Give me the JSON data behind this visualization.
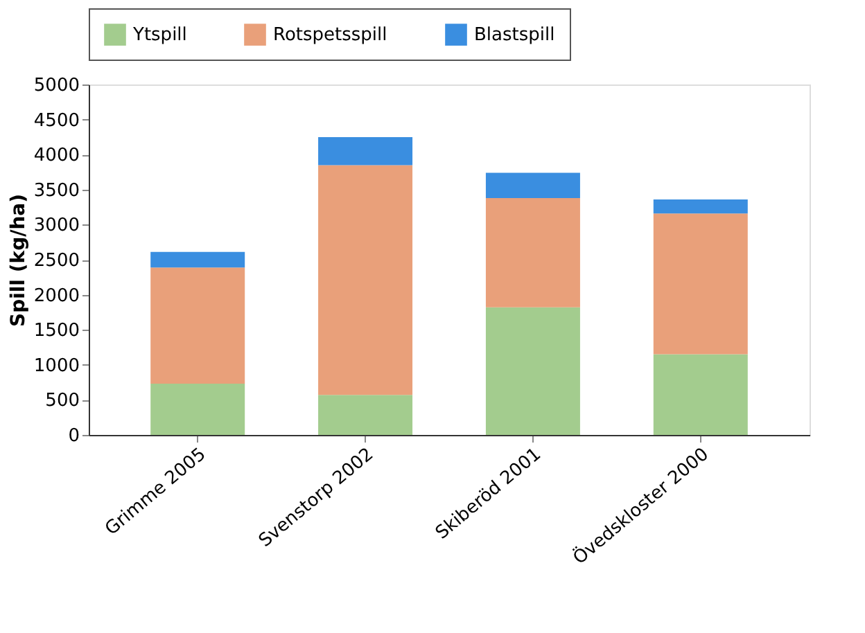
{
  "chart_data": {
    "type": "bar",
    "stacked": true,
    "ylabel": "Spill (kg/ha)",
    "categories": [
      "Grimme 2005",
      "Svenstorp 2002",
      "Skiberöd 2001",
      "Övedskloster 2000"
    ],
    "series": [
      {
        "name": "Ytspill",
        "color": "#a3cc8e",
        "values": [
          730,
          570,
          1820,
          1150
        ]
      },
      {
        "name": "Rotspetsspill",
        "color": "#e9a07a",
        "values": [
          1660,
          3280,
          1560,
          2010
        ]
      },
      {
        "name": "Blastspill",
        "color": "#3a8ee0",
        "values": [
          220,
          400,
          360,
          200
        ]
      }
    ],
    "ylim": [
      0,
      5000
    ],
    "yticks": [
      0,
      500,
      1000,
      1500,
      2000,
      2500,
      3000,
      3500,
      4000,
      4500,
      5000
    ],
    "grid": false,
    "legend": "top"
  }
}
